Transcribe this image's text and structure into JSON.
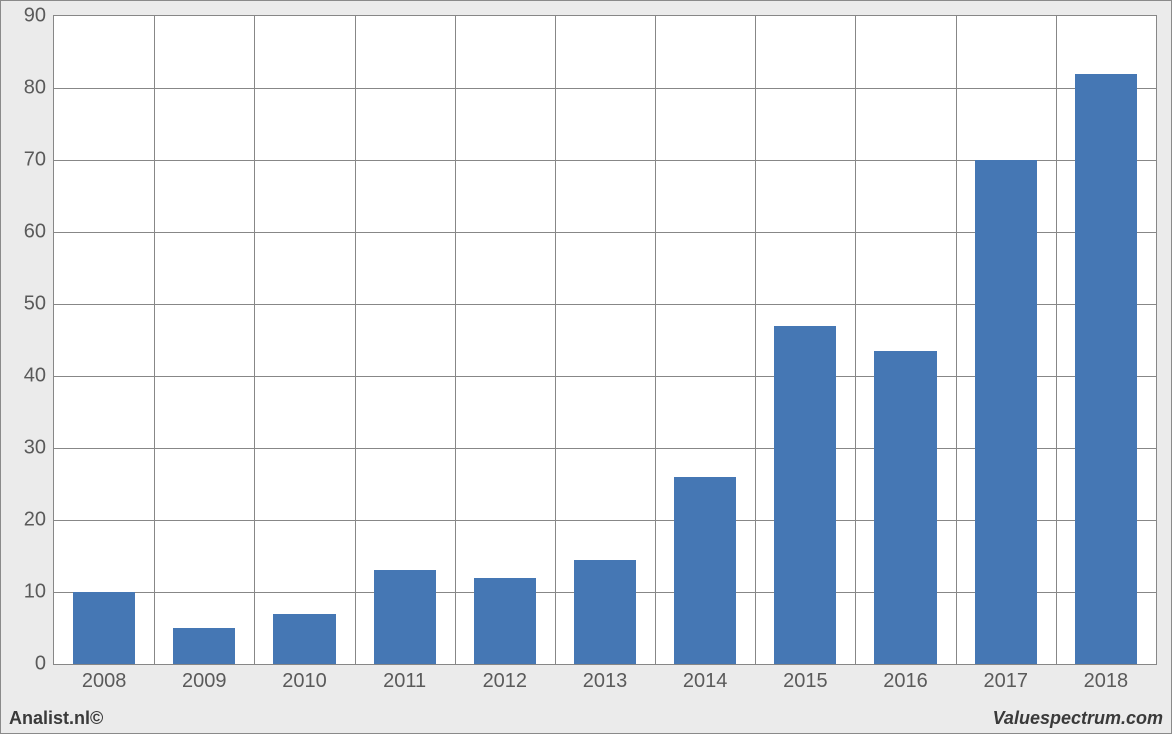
{
  "chart": {
    "type": "bar",
    "background_color": "#ffffff",
    "frame_background": "#ebebeb",
    "grid_color": "#878787",
    "bar_color": "#4577b4",
    "bar_width": 0.62,
    "label_fontsize": 20,
    "label_color": "#5a5a5a",
    "categories": [
      "2008",
      "2009",
      "2010",
      "2011",
      "2012",
      "2013",
      "2014",
      "2015",
      "2016",
      "2017",
      "2018"
    ],
    "values": [
      10,
      5,
      7,
      13,
      12,
      14.5,
      26,
      47,
      43.5,
      70,
      82
    ],
    "ylim": [
      0,
      90
    ],
    "ytick_step": 10
  },
  "credits": {
    "left": "Analist.nl©",
    "right": "Valuespectrum.com"
  }
}
